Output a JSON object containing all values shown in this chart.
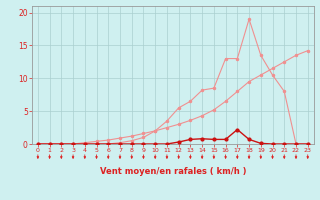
{
  "bg_color": "#cff0f0",
  "grid_color": "#aacfcf",
  "xlabel": "Vent moyen/en rafales ( km/h )",
  "xlabel_color": "#dd2222",
  "tick_color": "#dd2222",
  "axis_color": "#999999",
  "xlim": [
    -0.5,
    23.5
  ],
  "ylim": [
    0,
    21
  ],
  "yticks": [
    0,
    5,
    10,
    15,
    20
  ],
  "xticks": [
    0,
    1,
    2,
    3,
    4,
    5,
    6,
    7,
    8,
    9,
    10,
    11,
    12,
    13,
    14,
    15,
    16,
    17,
    18,
    19,
    20,
    21,
    22,
    23
  ],
  "line_straight_x": [
    0,
    1,
    2,
    3,
    4,
    5,
    6,
    7,
    8,
    9,
    10,
    11,
    12,
    13,
    14,
    15,
    16,
    17,
    18,
    19,
    20,
    21,
    22,
    23
  ],
  "line_straight_y": [
    0,
    0,
    0,
    0,
    0.2,
    0.4,
    0.6,
    0.9,
    1.2,
    1.6,
    2.0,
    2.5,
    3.0,
    3.6,
    4.3,
    5.2,
    6.5,
    8.0,
    9.5,
    10.5,
    11.5,
    12.5,
    13.5,
    14.2
  ],
  "line_curve_x": [
    0,
    1,
    2,
    3,
    4,
    5,
    6,
    7,
    8,
    9,
    10,
    11,
    12,
    13,
    14,
    15,
    16,
    17,
    18,
    19,
    20,
    21,
    22,
    23
  ],
  "line_curve_y": [
    0,
    0,
    0,
    0,
    0,
    0,
    0,
    0.2,
    0.5,
    1.0,
    2.0,
    3.5,
    5.5,
    6.5,
    8.2,
    8.5,
    13.0,
    13.0,
    19.0,
    13.5,
    10.5,
    8.0,
    0,
    0
  ],
  "line_pink_color": "#f09090",
  "line_dark_x": [
    0,
    1,
    2,
    3,
    4,
    5,
    6,
    7,
    8,
    9,
    10,
    11,
    12,
    13,
    14,
    15,
    16,
    17,
    18,
    19,
    20,
    21,
    22,
    23
  ],
  "line_dark_y": [
    0,
    0,
    0,
    0,
    0,
    0,
    0,
    0,
    0,
    0,
    0,
    0,
    0.3,
    0.7,
    0.8,
    0.7,
    0.7,
    2.2,
    0.7,
    0.1,
    0,
    0,
    0,
    0
  ],
  "line_dark_color": "#cc1111",
  "arrow_color": "#dd2222"
}
